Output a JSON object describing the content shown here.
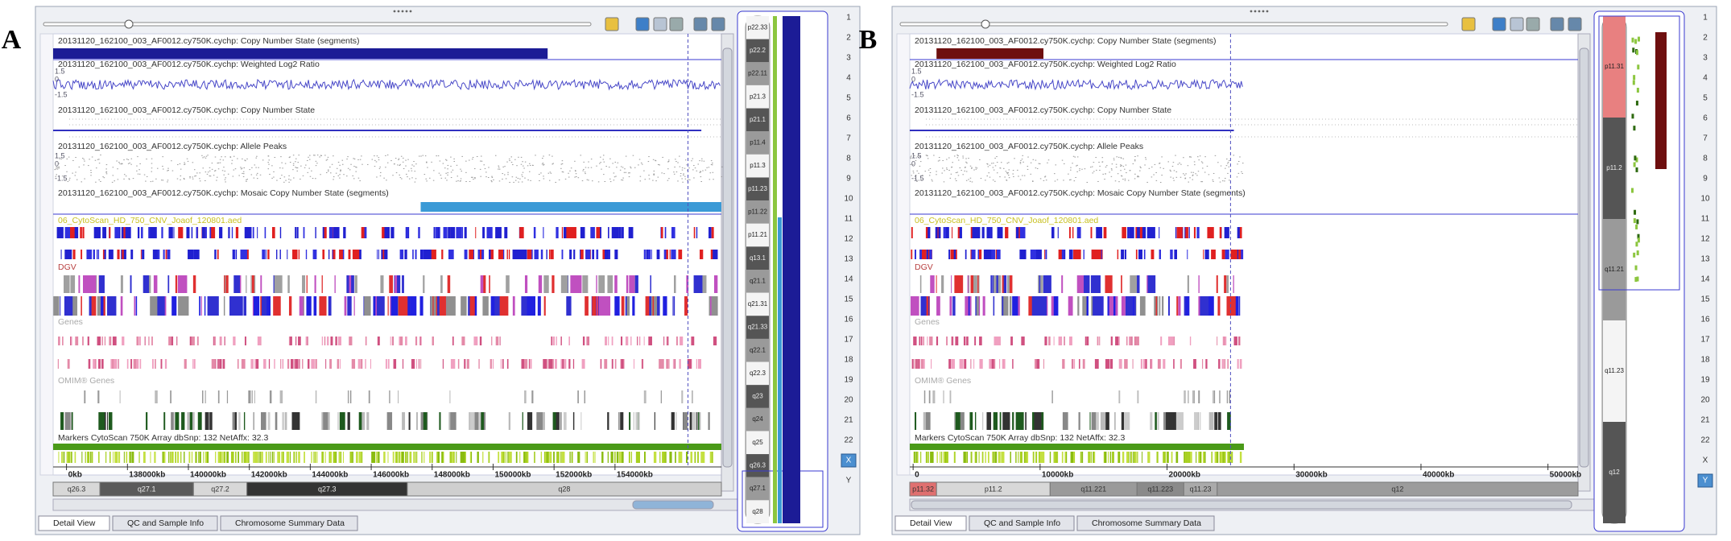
{
  "panels": [
    {
      "label": "A",
      "tracks": [
        "20131120_162100_003_AF0012.cy750K.cychp: Copy Number State (segments)",
        "20131120_162100_003_AF0012.cy750K.cychp: Weighted Log2 Ratio",
        "20131120_162100_003_AF0012.cy750K.cychp: Copy Number State",
        "20131120_162100_003_AF0012.cy750K.cychp: Allele Peaks",
        "20131120_162100_003_AF0012.cy750K.cychp: Mosaic Copy Number State (segments)",
        "06_CytoScan_HD_750_CNV_Joaof_120801.aed",
        "DGV",
        "Genes",
        "OMIM® Genes",
        "Markers CytoScan 750K Array dbSnp: 132 NetAffx: 32.3"
      ],
      "scale_labels": [
        "1.5",
        "0",
        "-1.5"
      ],
      "axis_labels": [
        "0kb",
        "138000kb",
        "140000kb",
        "142000kb",
        "144000kb",
        "146000kb",
        "148000kb",
        "150000kb",
        "152000kb",
        "154000kb"
      ],
      "cytobands": [
        "q26.3",
        "q27.1",
        "q27.2",
        "q27.3",
        "q28"
      ],
      "ideogram_bands": [
        "p22.33",
        "p22.2",
        "p22.11",
        "p21.3",
        "p21.1",
        "p11.4",
        "p11.3",
        "p11.23",
        "p11.22",
        "p11.21",
        "q13.1",
        "q21.1",
        "q21.31",
        "q21.33",
        "q22.1",
        "q22.3",
        "q23",
        "q24",
        "q25",
        "q26.3",
        "q27.1",
        "q28"
      ],
      "chromosomes": [
        "1",
        "2",
        "3",
        "4",
        "5",
        "6",
        "7",
        "8",
        "9",
        "10",
        "11",
        "12",
        "13",
        "14",
        "15",
        "16",
        "17",
        "18",
        "19",
        "20",
        "21",
        "22",
        "X",
        "Y"
      ],
      "selected": "X",
      "tabs": [
        "Detail View",
        "QC and Sample Info",
        "Chromosome Summary Data"
      ]
    },
    {
      "label": "B",
      "tracks": [
        "20131120_162100_003_AF0012.cy750K.cychp: Copy Number State (segments)",
        "20131120_162100_003_AF0012.cy750K.cychp: Weighted Log2 Ratio",
        "20131120_162100_003_AF0012.cy750K.cychp: Copy Number State",
        "20131120_162100_003_AF0012.cy750K.cychp: Allele Peaks",
        "20131120_162100_003_AF0012.cy750K.cychp: Mosaic Copy Number State (segments)",
        "06_CytoScan_HD_750_CNV_Joaof_120801.aed",
        "DGV",
        "Genes",
        "OMIM® Genes",
        "Markers CytoScan 750K Array dbSnp: 132 NetAffx: 32.3"
      ],
      "scale_labels": [
        "1.5",
        "0",
        "-1.5"
      ],
      "axis_labels": [
        "0",
        "10000kb",
        "20000kb",
        "30000kb",
        "40000kb",
        "50000kb"
      ],
      "cytobands": [
        "p11.32",
        "p11.2",
        "q11.221",
        "q11.223",
        "q11.23",
        "q12"
      ],
      "ideogram_bands": [
        "p11.31",
        "p11.2",
        "q11.21",
        "q11.23",
        "q12"
      ],
      "chromosomes": [
        "1",
        "2",
        "3",
        "4",
        "5",
        "6",
        "7",
        "8",
        "9",
        "10",
        "11",
        "12",
        "13",
        "14",
        "15",
        "16",
        "17",
        "18",
        "19",
        "20",
        "21",
        "22",
        "X",
        "Y"
      ],
      "selected": "Y",
      "tabs": [
        "Detail View",
        "QC and Sample Info",
        "Chromosome Summary Data"
      ]
    }
  ]
}
